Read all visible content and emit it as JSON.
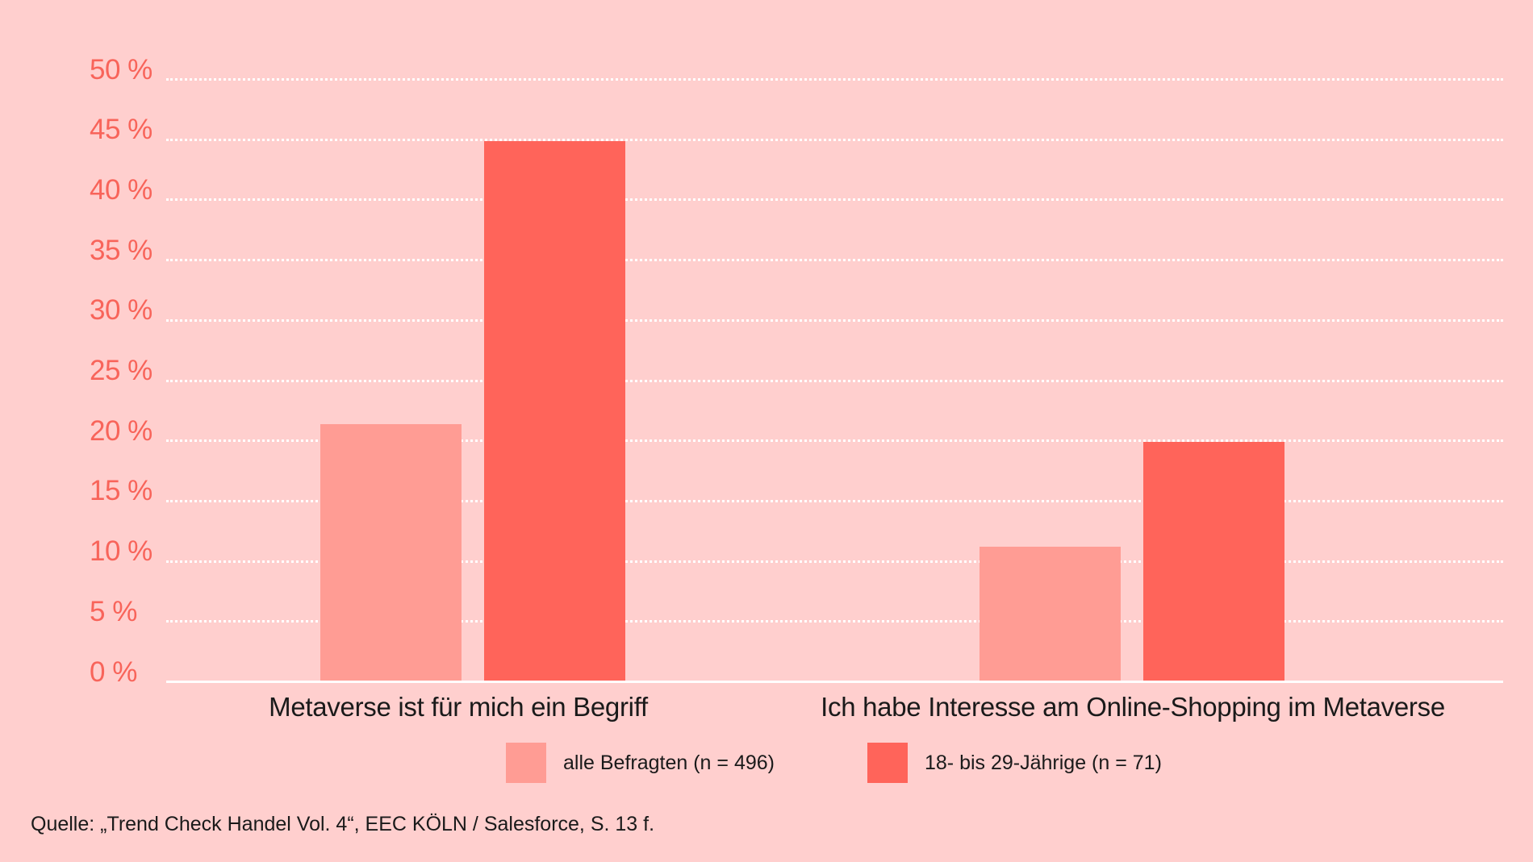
{
  "chart_data": {
    "type": "bar",
    "title": "",
    "xlabel": "",
    "ylabel": "",
    "ylim": [
      0,
      50
    ],
    "grid": true,
    "legend_position": "bottom",
    "yticks": [
      "0 %",
      "5 %",
      "10 %",
      "15 %",
      "20 %",
      "25 %",
      "30 %",
      "35 %",
      "40 %",
      "45 %",
      "50 %"
    ],
    "categories": [
      "Metaverse ist für mich ein Begriff",
      "Ich habe Interesse am Online-Shopping im Metaverse"
    ],
    "series": [
      {
        "name": "alle Befragten (n = 496)",
        "color": "#FF9C94",
        "values": [
          21.4,
          11.2
        ]
      },
      {
        "name": "18- bis 29-Jährige (n = 71)",
        "color": "#FF645A",
        "values": [
          44.9,
          19.9
        ]
      }
    ]
  },
  "legend": {
    "items": [
      {
        "label": "alle Befragten (n = 496)",
        "color": "#FF9C94"
      },
      {
        "label": "18- bis 29-Jährige (n = 71)",
        "color": "#FF645A"
      }
    ]
  },
  "source": "Quelle: „Trend Check Handel Vol. 4“, EEC KÖLN / Salesforce, S. 13 f.",
  "colors": {
    "background": "#FFCFCE",
    "axis_label": "#F8645A",
    "grid": "#FFFFFF"
  }
}
